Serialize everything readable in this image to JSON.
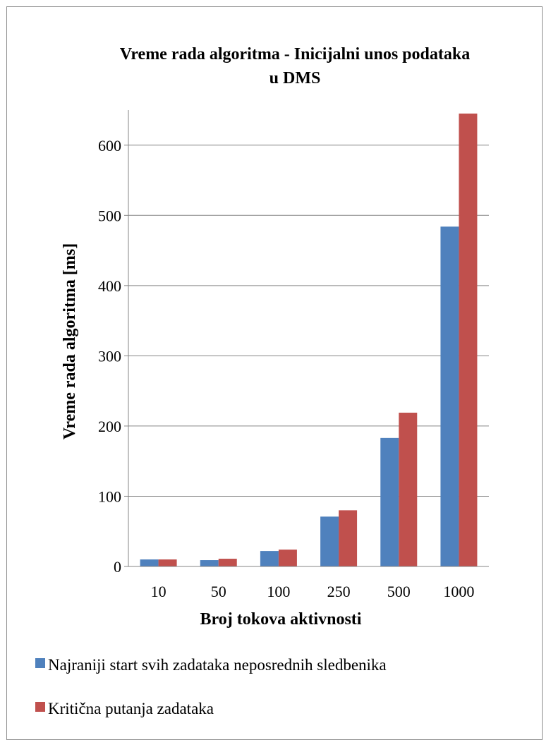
{
  "chart_data": {
    "type": "bar",
    "title_lines": [
      "Vreme rada algoritma - Inicijalni unos podataka",
      "u DMS"
    ],
    "xlabel": "Broj tokova aktivnosti",
    "ylabel": "Vreme rada algoritma [ms]",
    "categories": [
      "10",
      "50",
      "100",
      "250",
      "500",
      "1000"
    ],
    "ylim": [
      0,
      650
    ],
    "yticks": [
      0,
      100,
      200,
      300,
      400,
      500,
      600
    ],
    "grid": true,
    "legend_position": "bottom",
    "series": [
      {
        "name": "Najraniji start svih zadataka neposrednih sledbenika",
        "color": "#4f81bd",
        "values": [
          10,
          9,
          22,
          71,
          183,
          484
        ]
      },
      {
        "name": "Kritična putanja zadataka",
        "color": "#c0504d",
        "values": [
          10,
          11,
          24,
          80,
          219,
          645
        ]
      }
    ]
  }
}
